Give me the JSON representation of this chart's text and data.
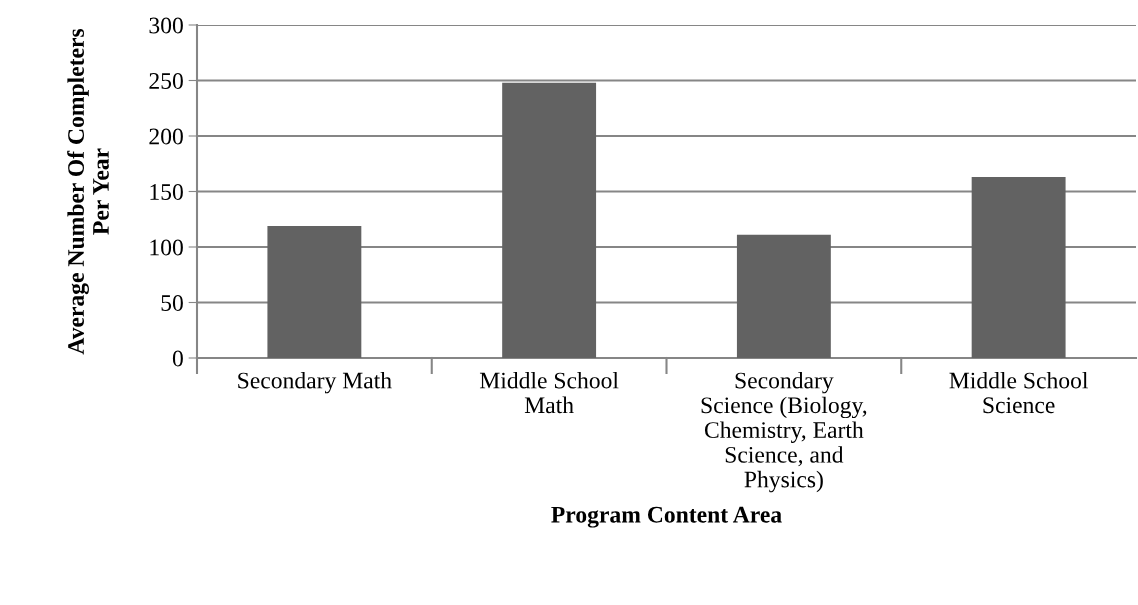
{
  "chart_data": {
    "type": "bar",
    "xlabel": "Program Content Area",
    "ylabel": "Average Number Of Completers\nPer Year",
    "categories": [
      "Secondary Math",
      "Middle School\nMath",
      "Secondary\nScience (Biology,\nChemistry, Earth\nScience, and\nPhysics)",
      "Middle School\nScience"
    ],
    "values": [
      119,
      248,
      111,
      163
    ],
    "color": "#626262",
    "ylim": [
      0,
      300
    ],
    "yticks": [
      0,
      50,
      100,
      150,
      200,
      250,
      300
    ],
    "grid": "y",
    "legend": false
  }
}
